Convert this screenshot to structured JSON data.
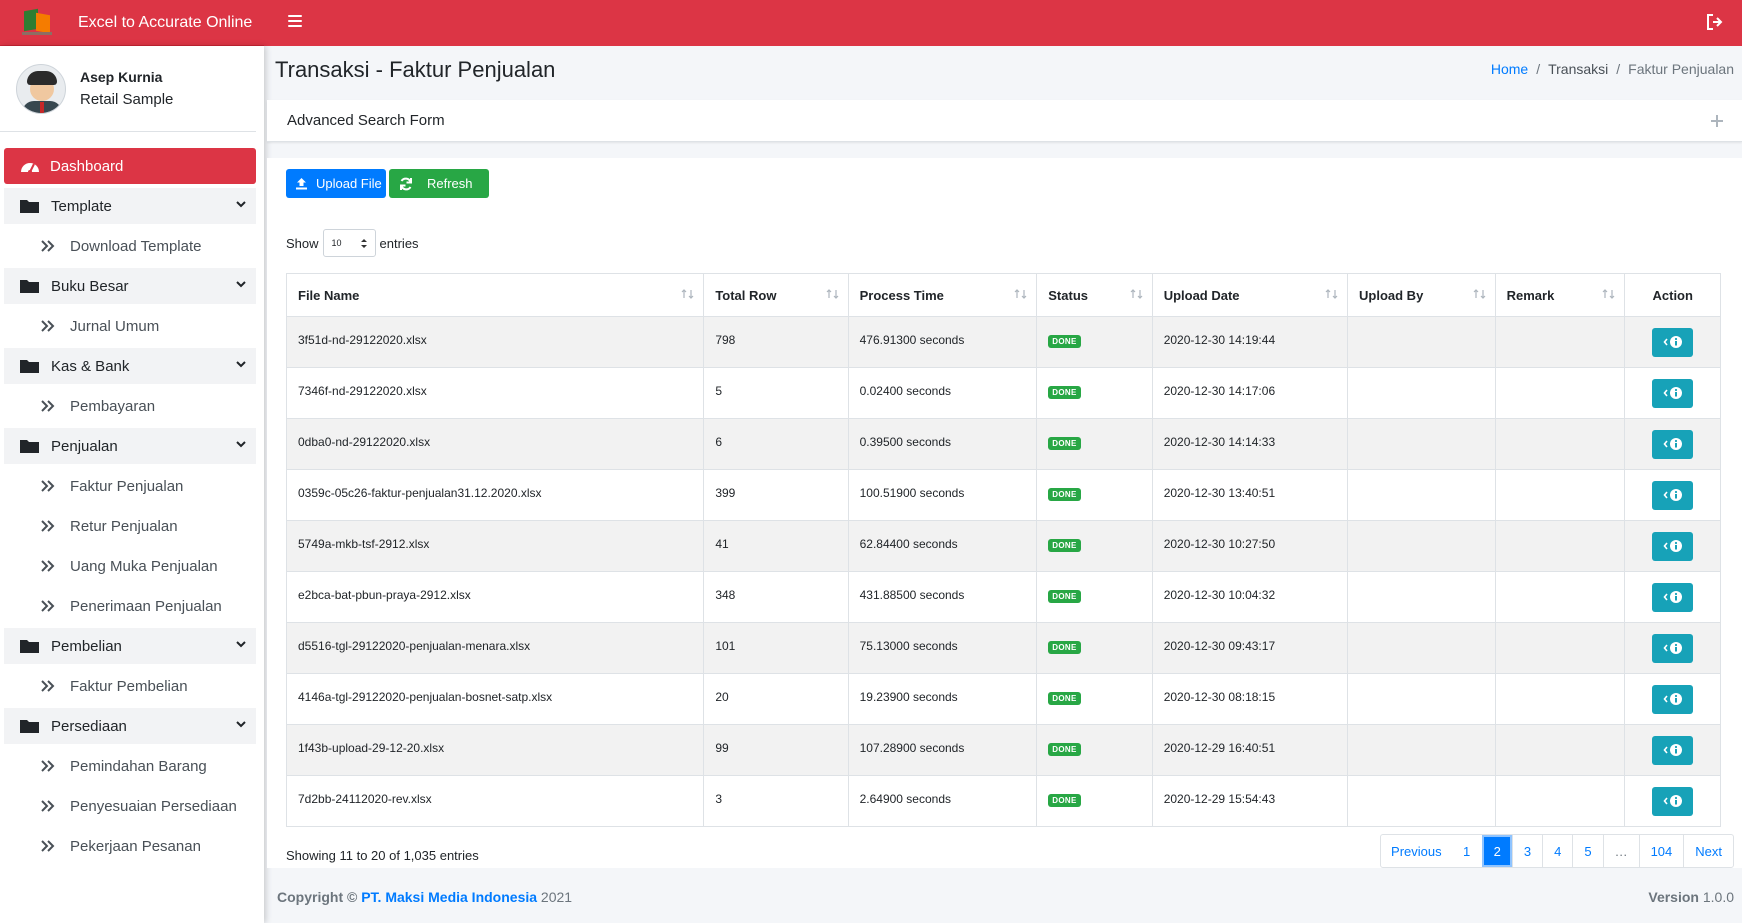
{
  "app": {
    "title": "Excel to Accurate Online"
  },
  "user": {
    "name": "Asep Kurnia",
    "role": "Retail Sample"
  },
  "sidebar": {
    "dashboard": "Dashboard",
    "groups": [
      {
        "label": "Template",
        "items": [
          "Download Template"
        ]
      },
      {
        "label": "Buku Besar",
        "items": [
          "Jurnal Umum"
        ]
      },
      {
        "label": "Kas & Bank",
        "items": [
          "Pembayaran"
        ]
      },
      {
        "label": "Penjualan",
        "items": [
          "Faktur Penjualan",
          "Retur Penjualan",
          "Uang Muka Penjualan",
          "Penerimaan Penjualan"
        ]
      },
      {
        "label": "Pembelian",
        "items": [
          "Faktur Pembelian"
        ]
      },
      {
        "label": "Persediaan",
        "items": [
          "Pemindahan Barang",
          "Penyesuaian Persediaan",
          "Pekerjaan Pesanan"
        ]
      }
    ]
  },
  "page": {
    "title": "Transaksi - Faktur Penjualan"
  },
  "breadcrumb": {
    "home": "Home",
    "section": "Transaksi",
    "current": "Faktur Penjualan"
  },
  "search_card": {
    "title": "Advanced Search Form"
  },
  "toolbar": {
    "upload_label": "Upload File",
    "refresh_label": "Refresh"
  },
  "entries": {
    "show": "Show",
    "value": "10",
    "suffix": "entries"
  },
  "table": {
    "columns": [
      "File Name",
      "Total Row",
      "Process Time",
      "Status",
      "Upload Date",
      "Upload By",
      "Remark",
      "Action"
    ],
    "rows": [
      {
        "file": "3f51d-nd-29122020.xlsx",
        "total": "798",
        "time": "476.91300 seconds",
        "status": "DONE",
        "date": "2020-12-30 14:19:44",
        "by": "",
        "remark": ""
      },
      {
        "file": "7346f-nd-29122020.xlsx",
        "total": "5",
        "time": "0.02400 seconds",
        "status": "DONE",
        "date": "2020-12-30 14:17:06",
        "by": "",
        "remark": ""
      },
      {
        "file": "0dba0-nd-29122020.xlsx",
        "total": "6",
        "time": "0.39500 seconds",
        "status": "DONE",
        "date": "2020-12-30 14:14:33",
        "by": "",
        "remark": ""
      },
      {
        "file": "0359c-05c26-faktur-penjualan31.12.2020.xlsx",
        "total": "399",
        "time": "100.51900 seconds",
        "status": "DONE",
        "date": "2020-12-30 13:40:51",
        "by": "",
        "remark": ""
      },
      {
        "file": "5749a-mkb-tsf-2912.xlsx",
        "total": "41",
        "time": "62.84400 seconds",
        "status": "DONE",
        "date": "2020-12-30 10:27:50",
        "by": "",
        "remark": ""
      },
      {
        "file": "e2bca-bat-pbun-praya-2912.xlsx",
        "total": "348",
        "time": "431.88500 seconds",
        "status": "DONE",
        "date": "2020-12-30 10:04:32",
        "by": "",
        "remark": ""
      },
      {
        "file": "d5516-tgl-29122020-penjualan-menara.xlsx",
        "total": "101",
        "time": "75.13000 seconds",
        "status": "DONE",
        "date": "2020-12-30 09:43:17",
        "by": "",
        "remark": ""
      },
      {
        "file": "4146a-tgl-29122020-penjualan-bosnet-satp.xlsx",
        "total": "20",
        "time": "19.23900 seconds",
        "status": "DONE",
        "date": "2020-12-30 08:18:15",
        "by": "",
        "remark": ""
      },
      {
        "file": "1f43b-upload-29-12-20.xlsx",
        "total": "99",
        "time": "107.28900 seconds",
        "status": "DONE",
        "date": "2020-12-29 16:40:51",
        "by": "",
        "remark": ""
      },
      {
        "file": "7d2bb-24112020-rev.xlsx",
        "total": "3",
        "time": "2.64900 seconds",
        "status": "DONE",
        "date": "2020-12-29 15:54:43",
        "by": "",
        "remark": ""
      }
    ]
  },
  "info": {
    "showing": "Showing 11 to 20 of 1,035 entries"
  },
  "pagination": {
    "previous": "Previous",
    "pages": [
      "1",
      "2",
      "3",
      "4",
      "5",
      "…",
      "104"
    ],
    "active": "2",
    "next": "Next"
  },
  "footer": {
    "copyright": "Copyright ©",
    "company": "PT. Maksi Media Indonesia",
    "year": "2021",
    "version_label": "Version",
    "version": "1.0.0"
  },
  "colors": {
    "primary_red": "#dc3545",
    "blue": "#007bff",
    "green": "#28a745",
    "info": "#17a2b8"
  }
}
